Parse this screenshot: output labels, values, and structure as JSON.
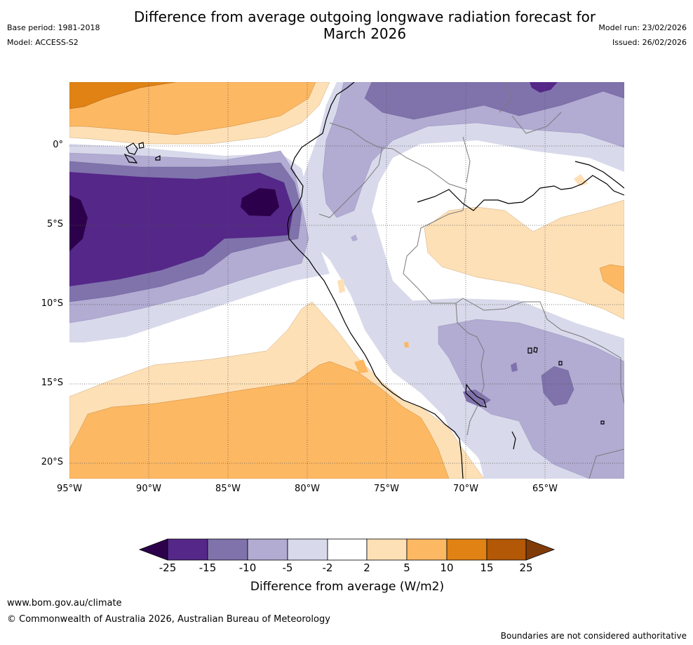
{
  "title_line1": "Difference from average outgoing longwave radiation forecast for",
  "title_line2": "March 2026",
  "meta_left": {
    "base_period": "Base period: 1981-2018",
    "model": "Model: ACCESS-S2"
  },
  "meta_right": {
    "model_run": "Model run: 23/02/2026",
    "issued": "Issued: 26/02/2026"
  },
  "lat_labels": [
    "0°",
    "5°S",
    "10°S",
    "15°S",
    "20°S"
  ],
  "lon_labels": [
    "95°W",
    "90°W",
    "85°W",
    "80°W",
    "75°W",
    "70°W",
    "65°W"
  ],
  "colorbar": {
    "ticks": [
      "-25",
      "-15",
      "-10",
      "-5",
      "-2",
      "2",
      "5",
      "10",
      "15",
      "25"
    ],
    "title": "Difference from average (W/m2)",
    "colors": [
      "#2d004b",
      "#542788",
      "#8073ac",
      "#b2abd2",
      "#d8daeb",
      "#ffffff",
      "#fee0b6",
      "#fdb863",
      "#e08214",
      "#b35806",
      "#7f3b08"
    ]
  },
  "footer": {
    "link": "www.bom.gov.au/climate",
    "copyright": "© Commonwealth of Australia 2026, Australian Bureau of Meteorology",
    "note": "Boundaries are not considered authoritative"
  }
}
